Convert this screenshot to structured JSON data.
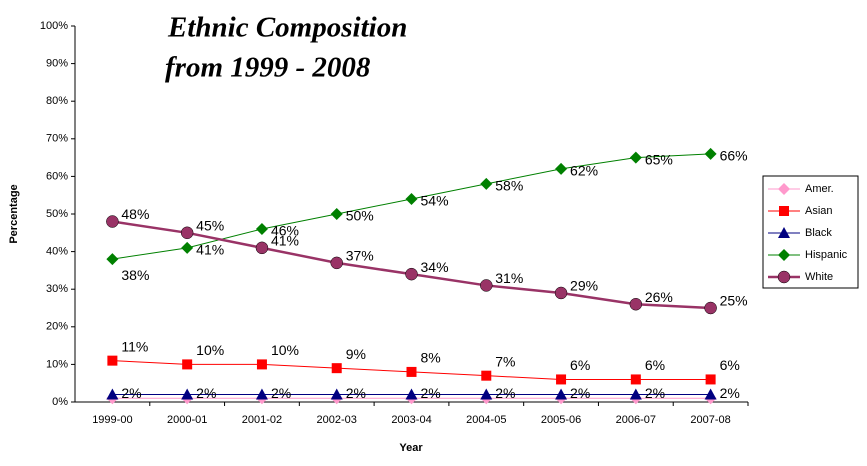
{
  "chart_data": {
    "type": "line",
    "title": [
      "Ethnic Composition",
      "from 1999 - 2008"
    ],
    "xlabel": "Year",
    "ylabel": "Percentage",
    "categories": [
      "1999-00",
      "2000-01",
      "2001-02",
      "2002-03",
      "2003-04",
      "2004-05",
      "2005-06",
      "2006-07",
      "2007-08"
    ],
    "ylim": [
      0,
      100
    ],
    "yticks": [
      {
        "value": 0,
        "label": "0%"
      },
      {
        "value": 10,
        "label": "10%"
      },
      {
        "value": 20,
        "label": "20%"
      },
      {
        "value": 30,
        "label": "30%"
      },
      {
        "value": 40,
        "label": "40%"
      },
      {
        "value": 50,
        "label": "50%"
      },
      {
        "value": 60,
        "label": "60%"
      },
      {
        "value": 70,
        "label": "70%"
      },
      {
        "value": 80,
        "label": "80%"
      },
      {
        "value": 90,
        "label": "90%"
      },
      {
        "value": 100,
        "label": "100%"
      }
    ],
    "legend": "right",
    "series": [
      {
        "name": "Amer.",
        "color": "#ff99cc",
        "marker": "diamond",
        "values": [
          1,
          1,
          1,
          1,
          1,
          1,
          1,
          1,
          1
        ]
      },
      {
        "name": "Asian",
        "color": "#ff0000",
        "marker": "square",
        "values": [
          11,
          10,
          10,
          9,
          8,
          7,
          6,
          6,
          6
        ],
        "value_labels": [
          "11%",
          "10%",
          "10%",
          "9%",
          "8%",
          "7%",
          "6%",
          "6%",
          "6%"
        ]
      },
      {
        "name": "Black",
        "color": "#000080",
        "marker": "triangle",
        "values": [
          2,
          2,
          2,
          2,
          2,
          2,
          2,
          2,
          2
        ],
        "value_labels": [
          "2%",
          "2%",
          "2%",
          "2%",
          "2%",
          "2%",
          "2%",
          "2%",
          "2%"
        ]
      },
      {
        "name": "Hispanic",
        "color": "#008000",
        "marker": "diamond",
        "values": [
          38,
          41,
          46,
          50,
          54,
          58,
          62,
          65,
          66
        ],
        "value_labels": [
          "38%",
          "41%",
          "46%",
          "50%",
          "54%",
          "58%",
          "62%",
          "65%",
          "66%"
        ]
      },
      {
        "name": "White",
        "color": "#993366",
        "marker": "circle",
        "values": [
          48,
          45,
          41,
          37,
          34,
          31,
          29,
          26,
          25
        ],
        "value_labels": [
          "48%",
          "45%",
          "41%",
          "37%",
          "34%",
          "31%",
          "29%",
          "26%",
          "25%"
        ]
      }
    ]
  }
}
